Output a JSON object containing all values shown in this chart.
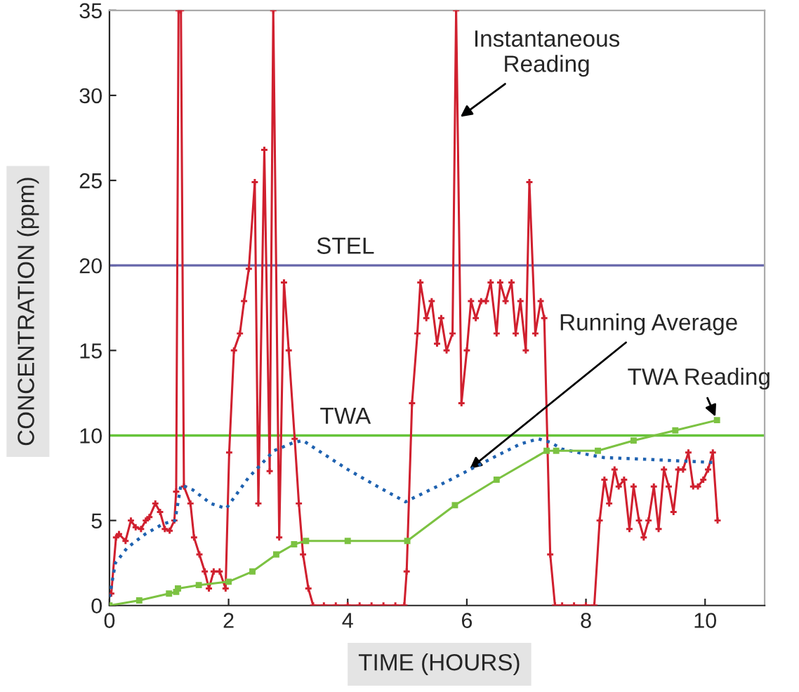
{
  "chart_data": {
    "type": "line",
    "xlabel": "TIME (HOURS)",
    "ylabel": "CONCENTRATION (ppm)",
    "xlim": [
      0,
      11
    ],
    "ylim": [
      0,
      35
    ],
    "xticks": [
      0,
      2,
      4,
      6,
      8,
      10
    ],
    "yticks": [
      0,
      5,
      10,
      15,
      20,
      25,
      30,
      35
    ],
    "grid": false,
    "legend": false,
    "series": [
      {
        "color": "#d0202f",
        "marker": "cross",
        "line_style": "solid",
        "x": [
          0.03,
          0.11,
          0.16,
          0.27,
          0.36,
          0.44,
          0.53,
          0.61,
          0.67,
          0.77,
          0.85,
          0.93,
          1.01,
          1.09,
          1.12,
          1.16,
          1.2,
          1.25,
          1.36,
          1.42,
          1.51,
          1.6,
          1.67,
          1.75,
          1.85,
          1.95,
          2.01,
          2.09,
          2.19,
          2.26,
          2.34,
          2.44,
          2.5,
          2.6,
          2.69,
          2.75,
          2.85,
          2.93,
          3.01,
          3.11,
          3.18,
          3.25,
          3.34,
          3.42,
          3.6,
          3.8,
          4.0,
          4.2,
          4.4,
          4.6,
          4.8,
          4.95,
          4.99,
          5.08,
          5.17,
          5.22,
          5.32,
          5.41,
          5.5,
          5.57,
          5.66,
          5.76,
          5.82,
          5.91,
          6.0,
          6.07,
          6.15,
          6.24,
          6.32,
          6.4,
          6.5,
          6.56,
          6.65,
          6.75,
          6.82,
          6.9,
          6.99,
          7.05,
          7.15,
          7.24,
          7.3,
          7.4,
          7.48,
          7.6,
          7.8,
          8.0,
          8.14,
          8.23,
          8.31,
          8.39,
          8.48,
          8.55,
          8.64,
          8.73,
          8.8,
          8.89,
          8.97,
          9.05,
          9.14,
          9.22,
          9.31,
          9.39,
          9.47,
          9.55,
          9.63,
          9.72,
          9.8,
          9.88,
          9.97,
          10.05,
          10.13,
          10.21
        ],
        "values": [
          0.7,
          4.0,
          4.2,
          3.8,
          5.0,
          4.6,
          4.5,
          5.0,
          5.2,
          6.0,
          5.5,
          4.5,
          4.4,
          5.0,
          6.7,
          35,
          35,
          7.0,
          6.0,
          4.0,
          3.0,
          2.0,
          1.0,
          2.0,
          2.0,
          1.0,
          9.0,
          15.0,
          16.0,
          17.9,
          19.8,
          24.9,
          6.0,
          26.8,
          7.9,
          35,
          4.0,
          19,
          15,
          9.8,
          6.0,
          3.0,
          1.0,
          0,
          0,
          0,
          0,
          0,
          0,
          0,
          0,
          0,
          2.0,
          11.9,
          16,
          19,
          16.9,
          17.9,
          15.4,
          16.9,
          15,
          16,
          35,
          11.9,
          15,
          17.9,
          16.9,
          17.9,
          17.9,
          19,
          16,
          19,
          17.9,
          19,
          16,
          17.9,
          15,
          24.9,
          16,
          17.9,
          16.9,
          3.0,
          0,
          0,
          0,
          0,
          0,
          5.0,
          7.4,
          6.0,
          8.0,
          7.0,
          7.4,
          4.5,
          7.0,
          5.0,
          4.0,
          5.0,
          7.0,
          4.5,
          8.0,
          7.0,
          5.5,
          8.0,
          8.0,
          9.0,
          7.0,
          7.0,
          7.4,
          8.0,
          9.0,
          5.0
        ]
      },
      {
        "color": "#1f62b0",
        "marker": "none",
        "line_style": "dotted",
        "x": [
          0,
          0.1,
          0.3,
          0.6,
          0.9,
          1.1,
          1.2,
          1.4,
          1.7,
          1.96,
          2.33,
          2.76,
          3.1,
          3.25,
          3.6,
          4.0,
          4.5,
          4.97,
          5.5,
          6.0,
          6.5,
          6.9,
          7.2,
          7.4,
          7.6,
          8.0,
          8.3,
          9.0,
          9.6,
          10.2
        ],
        "values": [
          0.5,
          2.5,
          3.4,
          4.2,
          4.8,
          5.0,
          7.1,
          6.8,
          6.0,
          5.7,
          7.5,
          9.1,
          9.6,
          9.7,
          8.9,
          8.0,
          7.0,
          6.1,
          7.0,
          7.9,
          8.8,
          9.5,
          9.8,
          9.6,
          9.2,
          8.9,
          8.7,
          8.6,
          8.5,
          8.4
        ]
      },
      {
        "color": "#7cc242",
        "marker": "square",
        "line_style": "solid",
        "x": [
          0,
          0.5,
          1.0,
          1.12,
          1.15,
          1.5,
          2.0,
          2.4,
          2.8,
          3.1,
          3.3,
          4.0,
          5.0,
          5.8,
          6.5,
          7.34,
          7.5,
          8.2,
          8.8,
          9.5,
          10.2
        ],
        "values": [
          0,
          0.3,
          0.7,
          0.8,
          1.0,
          1.2,
          1.4,
          2.0,
          3.0,
          3.6,
          3.8,
          3.8,
          3.8,
          5.9,
          7.4,
          9.1,
          9.1,
          9.1,
          9.7,
          10.3,
          10.9
        ]
      }
    ],
    "ref_lines": [
      {
        "axis": "y",
        "value": 20,
        "label": "STEL",
        "color": "#6666aa"
      },
      {
        "axis": "y",
        "value": 10,
        "label": "TWA",
        "color": "#66c43a"
      }
    ],
    "annotations": [
      {
        "text": "Instantaneous\nReading",
        "x": 5.84,
        "y": 28.6
      },
      {
        "text": "Running Average",
        "x": 6.0,
        "y": 7.9
      },
      {
        "text": "TWA Reading",
        "x": 10.2,
        "y": 10.9
      }
    ]
  }
}
